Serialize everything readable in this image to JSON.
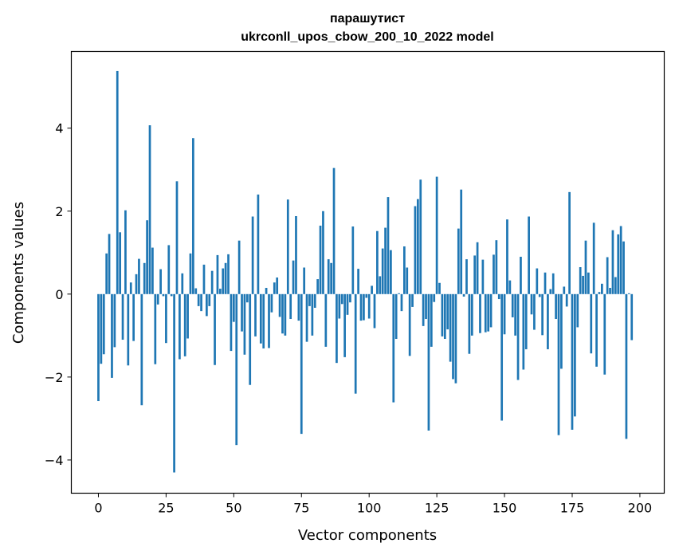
{
  "chart_data": {
    "type": "bar",
    "title": "парашутист",
    "subtitle": "ukrconll_upos_cbow_200_10_2022 model",
    "xlabel": "Vector components",
    "ylabel": "Components values",
    "xlim": [
      -10,
      209
    ],
    "ylim": [
      -4.8,
      5.85
    ],
    "xticks": [
      0,
      25,
      50,
      75,
      100,
      125,
      150,
      175,
      200
    ],
    "yticks": [
      -4,
      -2,
      0,
      2,
      4
    ],
    "ytick_labels": [
      "−4",
      "−2",
      "0",
      "2",
      "4"
    ],
    "grid": false,
    "bar_color": "#1f77b4",
    "values": [
      -2.58,
      -1.68,
      -1.45,
      0.98,
      1.45,
      -2.02,
      -1.28,
      5.38,
      1.49,
      -1.1,
      2.02,
      -1.72,
      0.28,
      -1.13,
      0.48,
      0.85,
      -2.68,
      0.75,
      1.78,
      4.07,
      1.12,
      -1.69,
      -0.25,
      0.6,
      -0.05,
      -1.18,
      1.18,
      -0.05,
      -4.3,
      2.72,
      -1.57,
      0.5,
      -1.5,
      -1.07,
      0.98,
      3.76,
      0.14,
      -0.29,
      -0.41,
      0.71,
      -0.53,
      -0.29,
      0.56,
      -1.71,
      0.94,
      0.13,
      0.62,
      0.75,
      0.96,
      -1.37,
      -0.67,
      -3.64,
      1.29,
      -0.9,
      -1.46,
      -0.2,
      -2.19,
      1.87,
      -1.02,
      2.4,
      -1.19,
      -1.31,
      0.15,
      -1.3,
      -0.44,
      0.28,
      0.4,
      -0.55,
      -0.95,
      -1.0,
      2.28,
      -0.6,
      0.81,
      1.88,
      -0.64,
      -3.37,
      0.64,
      -1.15,
      -0.29,
      -1.0,
      -0.33,
      0.36,
      1.65,
      2.0,
      -1.27,
      0.84,
      0.75,
      3.04,
      -1.66,
      -0.59,
      -0.24,
      -1.52,
      -0.5,
      -0.2,
      1.63,
      -2.4,
      0.61,
      -0.64,
      -0.63,
      -0.09,
      -0.59,
      0.2,
      -0.82,
      1.52,
      0.43,
      1.1,
      1.6,
      2.34,
      1.06,
      -2.61,
      -1.08,
      0.02,
      -0.41,
      1.15,
      0.64,
      -1.49,
      -0.31,
      2.12,
      2.29,
      2.76,
      -0.77,
      -0.6,
      -3.29,
      -1.27,
      -0.19,
      2.83,
      0.27,
      -1.02,
      -1.08,
      -0.85,
      -1.63,
      -2.05,
      -2.15,
      1.58,
      2.52,
      -0.06,
      0.84,
      -1.44,
      -1.0,
      0.93,
      1.25,
      -0.94,
      0.83,
      -0.92,
      -0.9,
      -0.8,
      0.95,
      1.3,
      -0.12,
      -3.05,
      -0.97,
      1.8,
      0.33,
      -0.56,
      -1.0,
      -2.07,
      0.9,
      -1.82,
      -1.33,
      1.87,
      -0.49,
      -0.86,
      0.62,
      -0.07,
      -0.99,
      0.52,
      -1.33,
      0.12,
      0.5,
      -0.6,
      -3.4,
      -1.8,
      0.18,
      -0.3,
      2.46,
      -3.27,
      -2.95,
      -0.8,
      0.65,
      0.44,
      1.29,
      0.52,
      -1.43,
      1.72,
      -1.75,
      0.05,
      0.25,
      -1.94,
      0.89,
      0.15,
      1.54,
      0.41,
      1.44,
      1.64,
      1.27,
      -3.49,
      0.02,
      -1.11
    ]
  }
}
